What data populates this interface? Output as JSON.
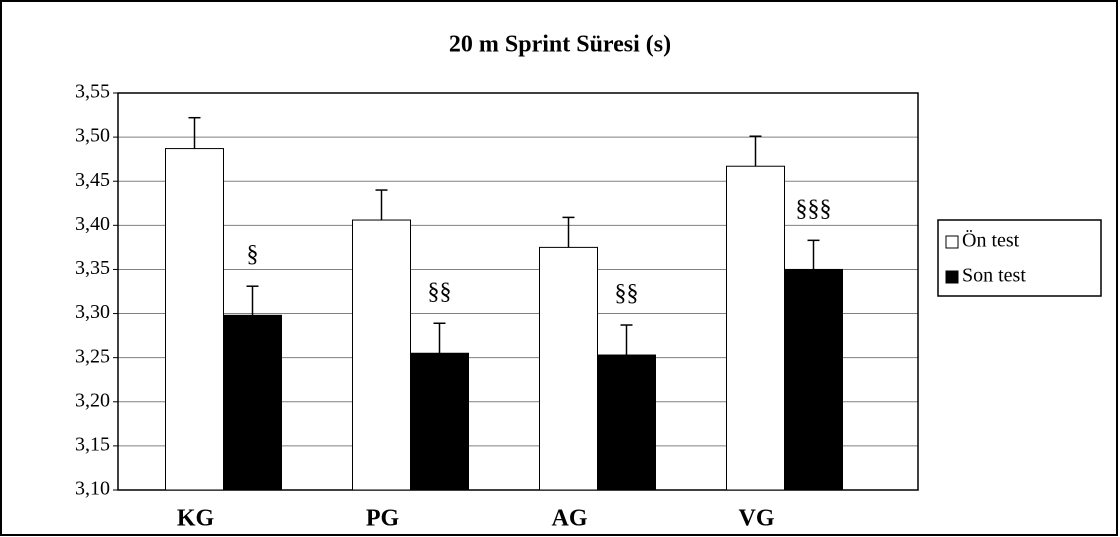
{
  "chart_data": {
    "type": "bar",
    "title": "20 m Sprint Süresi (s)",
    "categories": [
      "KG",
      "PG",
      "AG",
      "VG"
    ],
    "series": [
      {
        "name": "Ön test",
        "color": "#ffffff",
        "values": [
          3.487,
          3.406,
          3.375,
          3.467
        ],
        "errors": [
          0.035,
          0.034,
          0.034,
          0.034
        ]
      },
      {
        "name": "Son test",
        "color": "#000000",
        "values": [
          3.298,
          3.255,
          3.253,
          3.35
        ],
        "errors": [
          0.033,
          0.034,
          0.034,
          0.033
        ]
      }
    ],
    "annotations": [
      "§",
      "§§",
      "§§",
      "§§§"
    ],
    "ylim": [
      3.1,
      3.55
    ],
    "yticks": [
      {
        "value": 3.1,
        "label": "3,10"
      },
      {
        "value": 3.15,
        "label": "3,15"
      },
      {
        "value": 3.2,
        "label": "3,20"
      },
      {
        "value": 3.25,
        "label": "3,25"
      },
      {
        "value": 3.3,
        "label": "3,30"
      },
      {
        "value": 3.35,
        "label": "3,35"
      },
      {
        "value": 3.4,
        "label": "3,40"
      },
      {
        "value": 3.45,
        "label": "3,45"
      },
      {
        "value": 3.5,
        "label": "3,50"
      },
      {
        "value": 3.55,
        "label": "3,55"
      }
    ],
    "grid": true,
    "legend": "right"
  }
}
